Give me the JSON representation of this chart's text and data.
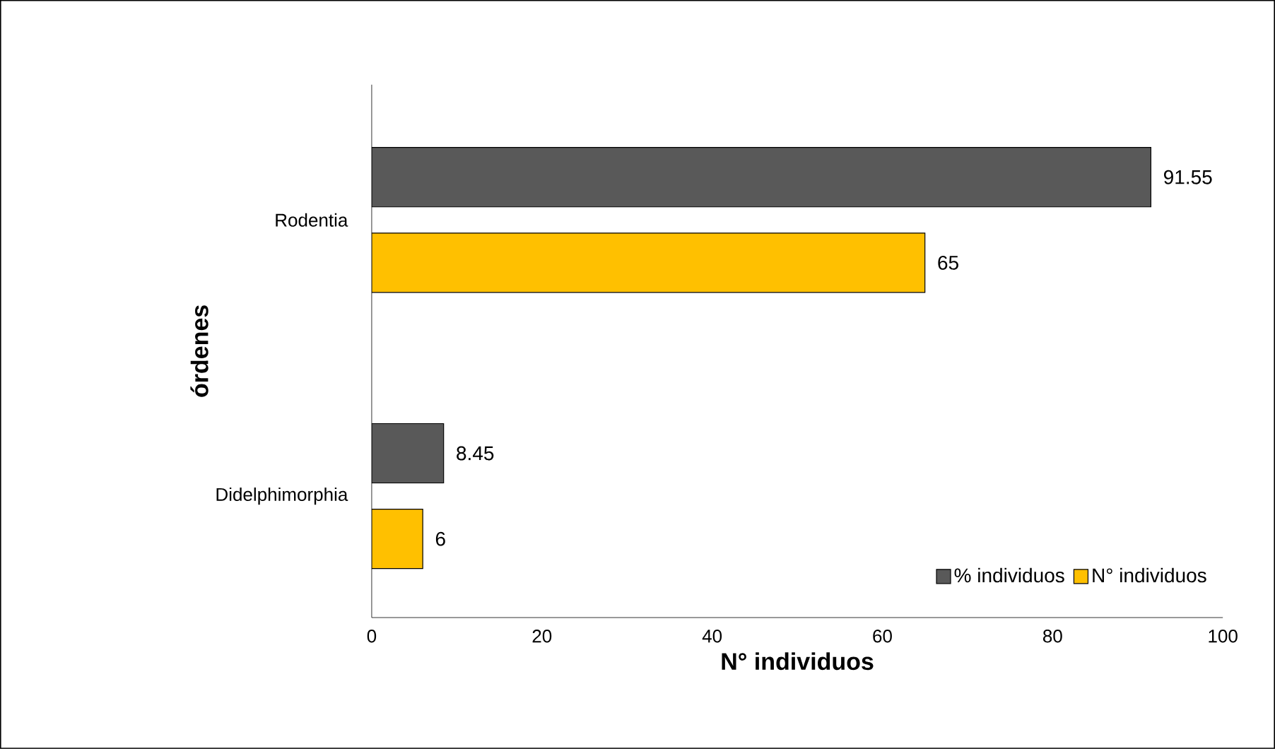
{
  "chart_data": {
    "type": "bar",
    "orientation": "horizontal",
    "categories": [
      "Rodentia",
      "Didelphimorphia"
    ],
    "series": [
      {
        "name": "% individuos",
        "color": "#595959",
        "values": [
          91.55,
          8.45
        ]
      },
      {
        "name": "N° individuos",
        "color": "#ffc000",
        "values": [
          65,
          6
        ]
      }
    ],
    "xlim": [
      0,
      100
    ],
    "xticks": [
      0,
      20,
      40,
      60,
      80,
      100
    ],
    "xlabel": "N° individuos",
    "ylabel": "órdenes",
    "data_labels": true,
    "legend": "bottom right"
  }
}
